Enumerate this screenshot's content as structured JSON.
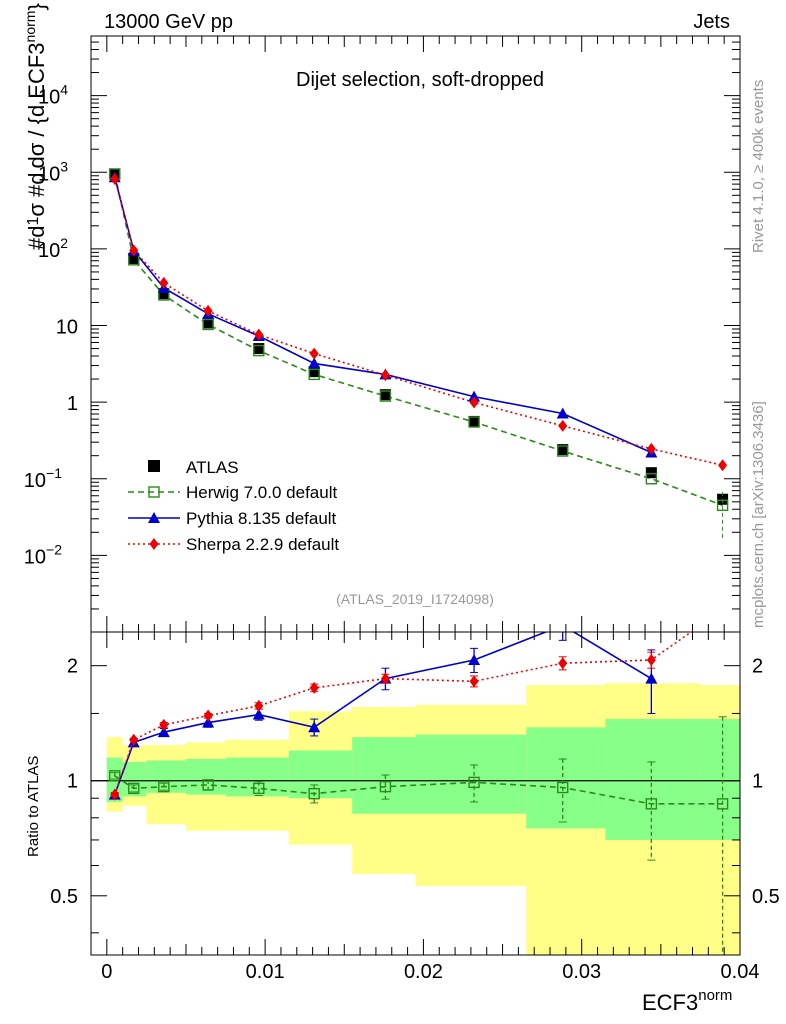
{
  "header": {
    "left": "13000 GeV pp",
    "right": "Jets"
  },
  "side_labels": {
    "rivet": "Rivet 4.1.0, ≥ 400k events",
    "mcplots": "mcplots.cern.ch [arXiv:1306.3436]"
  },
  "chart_data": {
    "type": "line",
    "title": "Dijet selection, soft-dropped",
    "analysis_id": "(ATLAS_2019_I1724098)",
    "xlabel": "ECF3",
    "xlabel_sup": "norm",
    "ylabel_top": "1/σ dσ/d ECF3^norm",
    "ylabel_ratio": "Ratio to ATLAS",
    "xlim": [
      -0.001,
      0.04
    ],
    "x_ticks": [
      "0",
      "0.01",
      "0.02",
      "0.03",
      "0.04"
    ],
    "y_top_scale": "log",
    "y_top_lim": [
      0.001,
      60000
    ],
    "y_top_ticks": [
      {
        "v": 10000,
        "base": "10",
        "exp": "4"
      },
      {
        "v": 1000,
        "base": "10",
        "exp": "3"
      },
      {
        "v": 100,
        "base": "10",
        "exp": "2"
      },
      {
        "v": 10,
        "base": "10",
        "exp": ""
      },
      {
        "v": 1,
        "base": "1",
        "exp": ""
      },
      {
        "v": 0.1,
        "base": "10",
        "exp": "−1"
      },
      {
        "v": 0.01,
        "base": "10",
        "exp": "−2"
      }
    ],
    "y_ratio_lim": [
      0.35,
      2.45
    ],
    "y_ratio_ticks": [
      "0.5",
      "1",
      "2"
    ],
    "bin_edges": [
      0,
      0.001,
      0.0025,
      0.005,
      0.0075,
      0.0115,
      0.0155,
      0.0195,
      0.0265,
      0.0315,
      0.0375,
      0.04
    ],
    "data": {
      "name": "ATLAS",
      "x": [
        0.0005,
        0.0017,
        0.0036,
        0.0064,
        0.0096,
        0.0131,
        0.0176,
        0.0232,
        0.0288,
        0.0344,
        0.0389
      ],
      "y": [
        950,
        75,
        26,
        10.8,
        5,
        2.5,
        1.25,
        0.56,
        0.24,
        0.12,
        0.054
      ],
      "stat_band_lo": [
        0.88,
        0.91,
        0.93,
        0.92,
        0.91,
        0.9,
        0.82,
        0.82,
        0.75,
        0.7,
        0.7
      ],
      "stat_band_hi": [
        1.15,
        1.12,
        1.13,
        1.14,
        1.15,
        1.2,
        1.3,
        1.32,
        1.38,
        1.45,
        1.45
      ],
      "syst_band_lo": [
        0.83,
        0.86,
        0.77,
        0.74,
        0.74,
        0.68,
        0.57,
        0.53,
        0.35,
        0.35,
        0.35
      ],
      "syst_band_hi": [
        1.3,
        1.24,
        1.24,
        1.26,
        1.28,
        1.52,
        1.56,
        1.58,
        1.78,
        1.8,
        1.78
      ]
    },
    "series": [
      {
        "name": "Herwig 7.0.0 default",
        "color": "#2a8a1a",
        "marker": "open-square",
        "line": "dashed",
        "y": [
          950,
          72,
          25,
          10.3,
          4.7,
          2.3,
          1.2,
          0.55,
          0.23,
          0.1,
          0.045
        ],
        "ratio": [
          1.03,
          0.955,
          0.965,
          0.975,
          0.955,
          0.925,
          0.965,
          0.99,
          0.96,
          0.87,
          0.87
        ],
        "ratio_err": [
          0.02,
          0.02,
          0.02,
          0.03,
          0.04,
          0.05,
          0.07,
          0.11,
          0.18,
          0.25,
          0.6
        ]
      },
      {
        "name": "Pythia 8.135 default",
        "color": "#0000cc",
        "marker": "filled-triangle",
        "line": "solid",
        "y": [
          860,
          95,
          31,
          14.2,
          7.3,
          3.2,
          2.3,
          1.18,
          0.71,
          0.22,
          null
        ],
        "ratio": [
          0.92,
          1.26,
          1.34,
          1.42,
          1.49,
          1.38,
          1.85,
          2.07,
          2.55,
          1.85,
          null
        ],
        "ratio_err": [
          0.01,
          0.02,
          0.03,
          0.04,
          0.05,
          0.07,
          0.12,
          0.15,
          0.22,
          0.35,
          null
        ]
      },
      {
        "name": "Sherpa 2.2.9 default",
        "color": "#ee0000",
        "marker": "filled-diamond",
        "line": "dotted",
        "y": [
          820,
          96,
          36,
          15.5,
          7.6,
          4.3,
          2.25,
          0.99,
          0.49,
          0.245,
          0.15
        ],
        "ratio": [
          0.92,
          1.28,
          1.4,
          1.48,
          1.57,
          1.75,
          1.85,
          1.82,
          2.03,
          2.07,
          2.8
        ],
        "ratio_err": [
          0.01,
          0.01,
          0.02,
          0.02,
          0.03,
          0.04,
          0.05,
          0.06,
          0.08,
          0.1,
          0.15
        ]
      }
    ],
    "legend_position": "middle-left"
  }
}
